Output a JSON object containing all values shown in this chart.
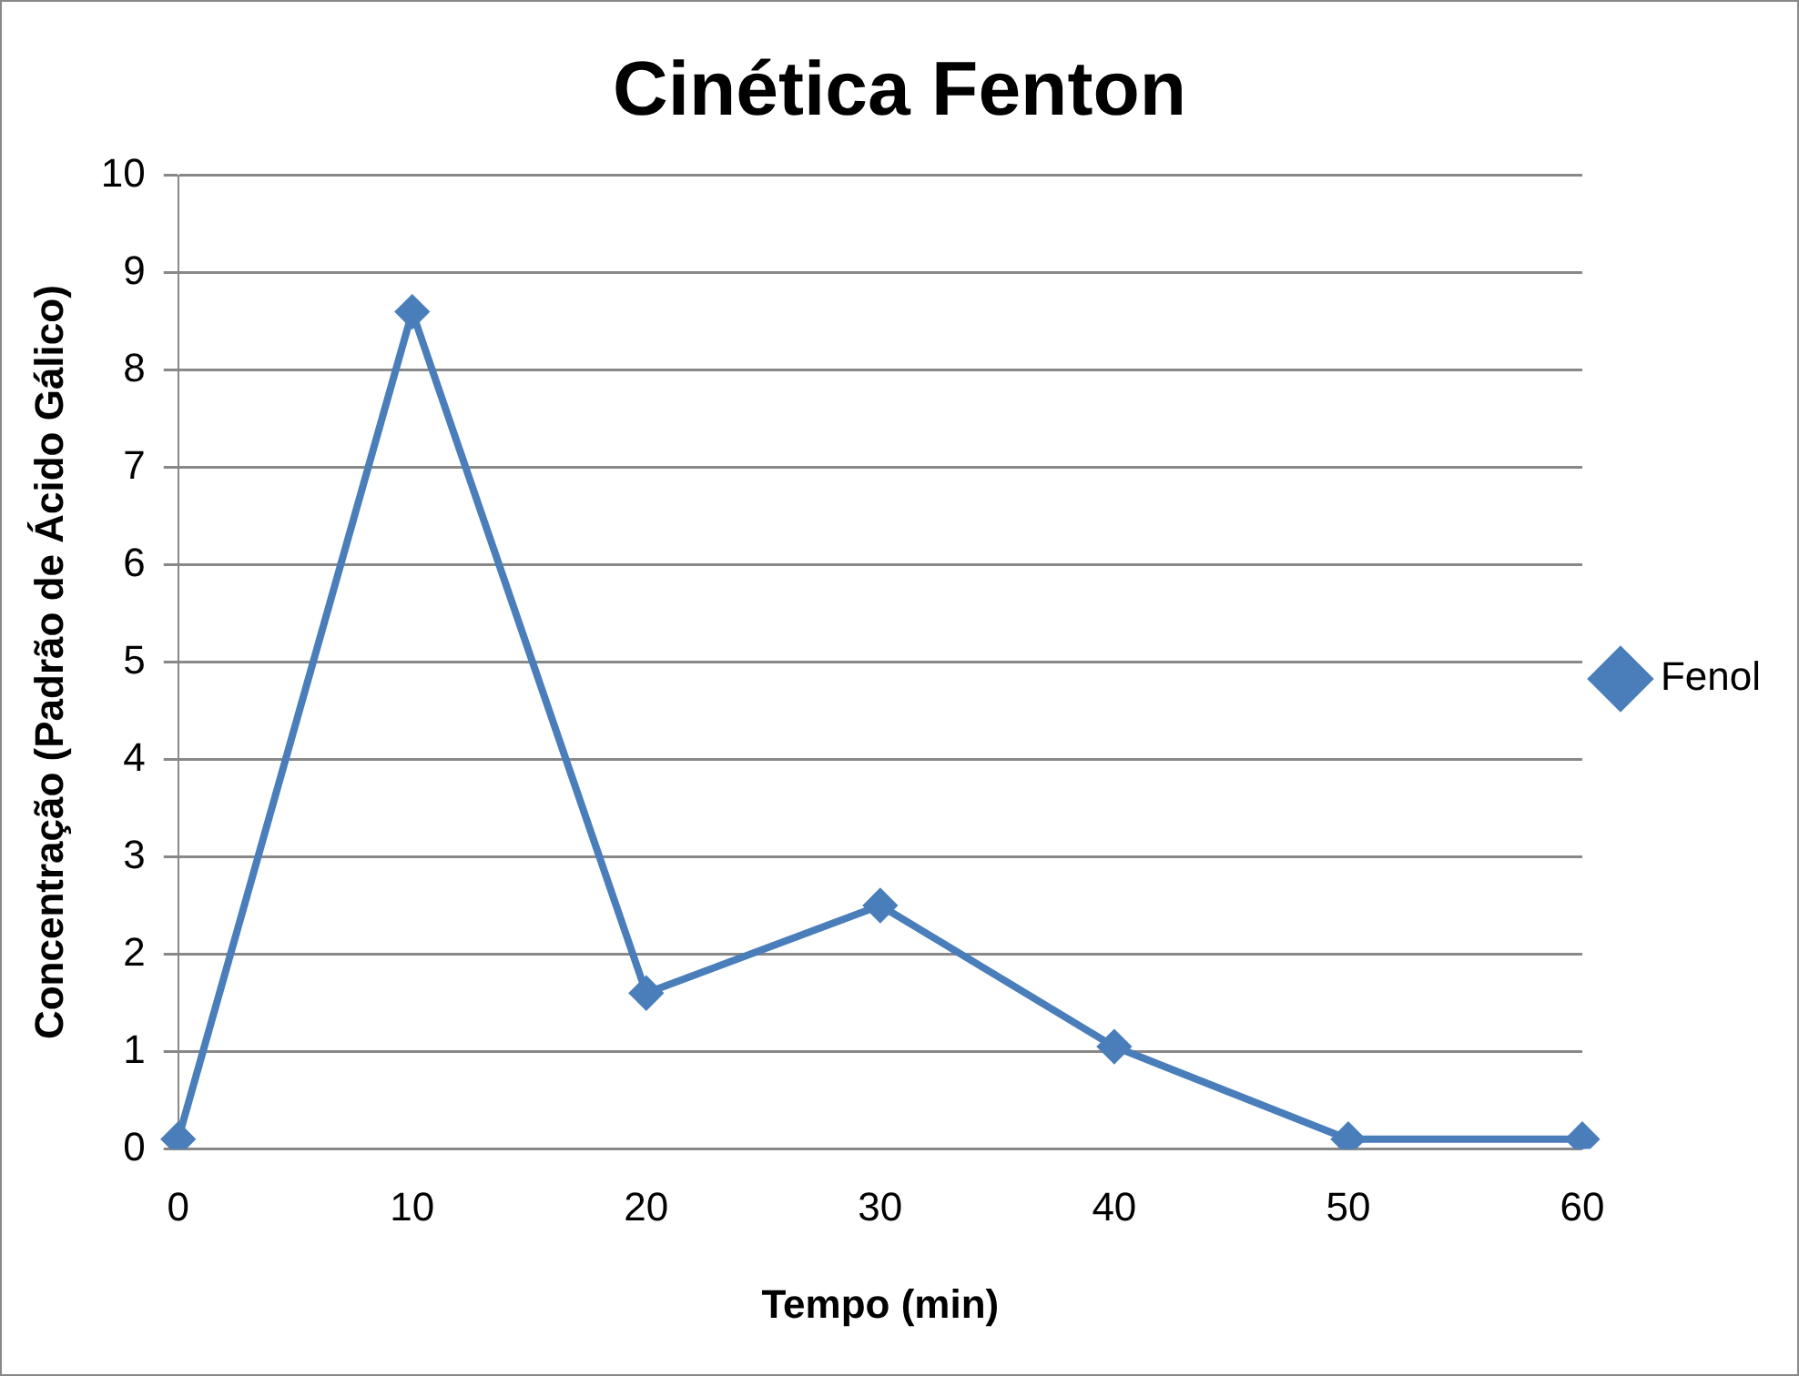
{
  "chart_data": {
    "type": "line",
    "title": "Cinética Fenton",
    "xlabel": "Tempo (min)",
    "ylabel": "Concentração (Padrão de Ácido Gálico)",
    "categories": [
      "0",
      "10",
      "20",
      "30",
      "40",
      "50",
      "60"
    ],
    "series": [
      {
        "name": "Fenol",
        "color": "#4a7ebb",
        "values": [
          0.1,
          8.6,
          1.6,
          2.5,
          1.05,
          0.1,
          0.1
        ]
      }
    ],
    "ylim": [
      0,
      10
    ],
    "yticks": [
      0,
      1,
      2,
      3,
      4,
      5,
      6,
      7,
      8,
      9,
      10
    ],
    "grid": "y",
    "legend": "right",
    "marker": "diamond",
    "line_style": "solid"
  }
}
